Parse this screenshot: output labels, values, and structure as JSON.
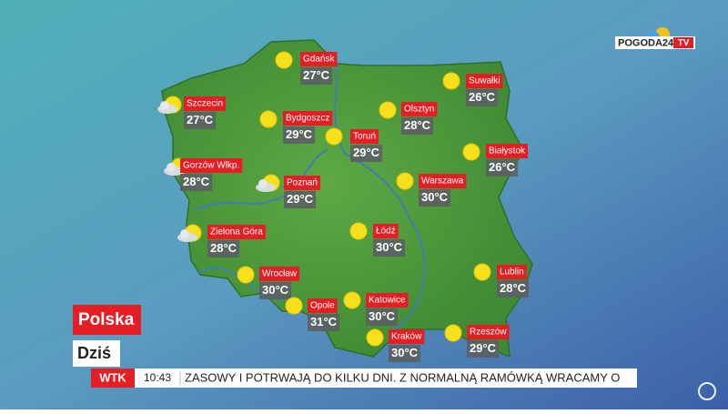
{
  "logo": {
    "brand": "POGODA24",
    "tv": "TV"
  },
  "region": "Polska",
  "period": "Dziś",
  "ticker": {
    "channel": "WTK",
    "time": "10:43",
    "text": "ZASOWY I POTRWAJĄ DO KILKU DNI. Z NORMALNĄ RAMÓWKĄ WRACAMY O"
  },
  "cities": [
    {
      "name": "Gdańsk",
      "temp": "27°C",
      "icon": "sun"
    },
    {
      "name": "Suwałki",
      "temp": "26°C",
      "icon": "sun"
    },
    {
      "name": "Szczecin",
      "temp": "27°C",
      "icon": "cloudy"
    },
    {
      "name": "Bydgoszcz",
      "temp": "29°C",
      "icon": "sun"
    },
    {
      "name": "Olsztyn",
      "temp": "28°C",
      "icon": "sun"
    },
    {
      "name": "Toruń",
      "temp": "29°C",
      "icon": "sun"
    },
    {
      "name": "Białystok",
      "temp": "26°C",
      "icon": "sun"
    },
    {
      "name": "Gorzów Wlkp.",
      "temp": "28°C",
      "icon": "cloudy"
    },
    {
      "name": "Poznań",
      "temp": "29°C",
      "icon": "cloudy"
    },
    {
      "name": "Warszawa",
      "temp": "30°C",
      "icon": "sun"
    },
    {
      "name": "Zielona Góra",
      "temp": "28°C",
      "icon": "cloudy"
    },
    {
      "name": "Łódź",
      "temp": "30°C",
      "icon": "sun"
    },
    {
      "name": "Wrocław",
      "temp": "30°C",
      "icon": "sun"
    },
    {
      "name": "Lublin",
      "temp": "28°C",
      "icon": "sun"
    },
    {
      "name": "Opole",
      "temp": "31°C",
      "icon": "sun"
    },
    {
      "name": "Katowice",
      "temp": "30°C",
      "icon": "sun"
    },
    {
      "name": "Kraków",
      "temp": "30°C",
      "icon": "sun"
    },
    {
      "name": "Rzeszów",
      "temp": "29°C",
      "icon": "sun"
    }
  ]
}
